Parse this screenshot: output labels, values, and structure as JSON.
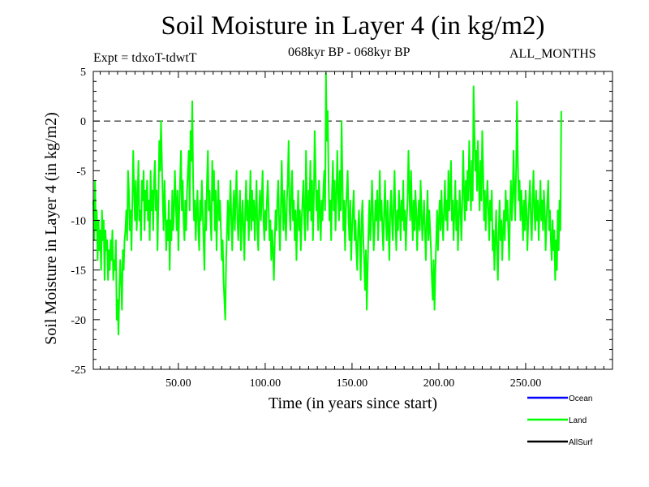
{
  "header": {
    "title": "Soil Moisture in Layer 4 (in kg/m2)",
    "expt": "Expt = tdxoT-tdwtT",
    "period": "068kyr BP - 068kyr BP",
    "months": "ALL_MONTHS"
  },
  "chart_data": {
    "type": "line",
    "title": "Soil Moisture in Layer 4 (in kg/m2)",
    "xlabel": "Time (in years since start)",
    "ylabel": "Soil Moisture in Layer 4 (in kg/m2)",
    "xlim": [
      1,
      300
    ],
    "ylim": [
      -25,
      5
    ],
    "x_ticks": [
      50,
      100,
      150,
      200,
      250
    ],
    "x_tick_labels": [
      "50.00",
      "100.00",
      "150.00",
      "200.00",
      "250.00"
    ],
    "y_ticks": [
      5,
      0,
      -5,
      -10,
      -15,
      -20,
      -25
    ],
    "y_tick_labels": [
      "5",
      "0",
      "-5",
      "-10",
      "-15",
      "-20",
      "-25"
    ],
    "reference_line": {
      "y": 0,
      "style": "dashed",
      "color": "#000000"
    },
    "legend_position": "bottom-right",
    "series": [
      {
        "name": "Ocean",
        "color": "#0000ff",
        "x": [],
        "y": []
      },
      {
        "name": "Land",
        "color": "#00ff00",
        "x_step": 0.5,
        "x_start": 1,
        "y": [
          -8,
          -12,
          -6,
          -11,
          -9,
          -14,
          -10,
          -13,
          -11,
          -15,
          -9,
          -12,
          -10,
          -16,
          -11,
          -13,
          -12,
          -16,
          -13,
          -15,
          -12,
          -14,
          -11,
          -16,
          -14,
          -15,
          -12,
          -20,
          -18,
          -21.5,
          -17,
          -14,
          -16,
          -19,
          -13,
          -15,
          -12,
          -11,
          -9,
          -12,
          -5,
          -7,
          -11,
          -9,
          -13,
          -8,
          -3,
          -7,
          -10,
          -6,
          -11,
          -8,
          -4,
          -10,
          -9,
          -12,
          -6,
          -8,
          -5,
          -11,
          -7,
          -9,
          -6,
          -10,
          -8,
          -12,
          -5,
          -9,
          -7,
          -11,
          -6,
          -4,
          -9,
          -7,
          -13,
          -8,
          -2,
          -5,
          0,
          -4,
          -8,
          -11,
          -6,
          -9,
          -13,
          -10,
          -12,
          -8,
          -15,
          -10,
          -12,
          -7,
          -11,
          -9,
          -5,
          -8,
          -11,
          -7,
          -13,
          -9,
          -6,
          -3,
          -9,
          -6,
          -10,
          -12,
          -8,
          -11,
          -7,
          -5,
          -3,
          -9,
          -1,
          -4,
          2,
          -6,
          -10,
          -8,
          -12,
          -9,
          -7,
          -11,
          -13,
          -8,
          -10,
          -6,
          -9,
          -12,
          -15,
          -8,
          -11,
          -6,
          -3,
          -9,
          -7,
          -10,
          -12,
          -4,
          -8,
          -5,
          -11,
          -7,
          -13,
          -9,
          -6,
          -10,
          -8,
          -11,
          -14,
          -12,
          -16,
          -18,
          -20,
          -14,
          -11,
          -8,
          -12,
          -9,
          -6,
          -10,
          -13,
          -9,
          -7,
          -11,
          -8,
          -5,
          -10,
          -12,
          -9,
          -7,
          -13,
          -10,
          -8,
          -11,
          -14,
          -9,
          -6,
          -10,
          -8,
          -12,
          -9,
          -5,
          -11,
          -7,
          -10,
          -8,
          -12,
          -9,
          -6,
          -11,
          -13,
          -9,
          -7,
          -10,
          -8,
          -5,
          -10,
          -12,
          -9,
          -11,
          -8,
          -6,
          -9,
          -12,
          -10,
          -14,
          -11,
          -13,
          -16,
          -12,
          -9,
          -11,
          -8,
          -6,
          -10,
          -13,
          -9,
          -4,
          -8,
          -11,
          -7,
          -10,
          -12,
          -8,
          -6,
          -2,
          -9,
          -11,
          -7,
          -5,
          -10,
          -8,
          -12,
          -9,
          -14,
          -10,
          -7,
          -11,
          -9,
          -13,
          -10,
          -8,
          -6,
          -10,
          -12,
          -3,
          -8,
          -11,
          -7,
          -9,
          -4,
          -10,
          -6,
          -12,
          -8,
          -1,
          -5,
          -9,
          -7,
          -11,
          -6,
          -9,
          -12,
          -8,
          -10,
          -7,
          -5,
          -9,
          4.8,
          -2,
          1,
          -6,
          -10,
          -8,
          -12,
          -7,
          -4,
          -9,
          -6,
          -11,
          -8,
          -3,
          -7,
          -10,
          -5,
          -9,
          0,
          -6,
          -11,
          -8,
          -13,
          -9,
          -7,
          -5,
          -10,
          -12,
          -8,
          -14,
          -11,
          -9,
          -7,
          -12,
          -10,
          -13,
          -15,
          -11,
          -9,
          -12,
          -16,
          -10,
          -8,
          -12,
          -14,
          -17,
          -13,
          -19,
          -15,
          -11,
          -8,
          -12,
          -10,
          -6,
          -9,
          -13,
          -11,
          -8,
          -10,
          -7,
          -12,
          -9,
          -5,
          -10,
          -8,
          -11,
          -13,
          -9,
          -6,
          -10,
          -12,
          -8,
          -11,
          -14,
          -9,
          -7,
          -10,
          -12,
          -8,
          -5,
          -10,
          -13,
          -9,
          -11,
          -7,
          -9,
          -12,
          -8,
          -10,
          -6,
          -11,
          -9,
          -13,
          -10,
          -8,
          -3,
          -7,
          -10,
          -5,
          -9,
          -12,
          -8,
          -11,
          -7,
          -9,
          -13,
          -10,
          -8,
          -11,
          -6,
          -9,
          -12,
          -10,
          -8,
          -11,
          -14,
          -10,
          -7,
          -12,
          -9,
          -11,
          -13,
          -16,
          -18,
          -14,
          -19,
          -15,
          -12,
          -9,
          -13,
          -10,
          -8,
          -11,
          -7,
          -10,
          -12,
          -9,
          -6,
          -10,
          -8,
          -11,
          -5,
          -9,
          -7,
          -4,
          -10,
          -8,
          -12,
          -9,
          -6,
          -11,
          -8,
          -13,
          -10,
          -7,
          -9,
          -12,
          -8,
          -3,
          -7,
          -10,
          -6,
          -9,
          -5,
          -8,
          -2,
          -6,
          -9,
          -4,
          -8,
          3.5,
          -1,
          -5,
          -3,
          -7,
          -2,
          -6,
          -9,
          -4,
          -8,
          -1,
          -5,
          -10,
          -7,
          -11,
          -8,
          -6,
          -9,
          -12,
          -8,
          -10,
          -7,
          -13,
          -11,
          -15,
          -12,
          -9,
          -13,
          -16,
          -11,
          -8,
          -12,
          -10,
          -14,
          -11,
          -9,
          -12,
          -7,
          -10,
          -8,
          -11,
          -14,
          -9,
          -6,
          -10,
          -8,
          -3,
          -7,
          -10,
          -5,
          2,
          -4,
          -8,
          -6,
          -10,
          -7,
          -9,
          -12,
          -8,
          -11,
          -7,
          -9,
          -13,
          -10,
          -8,
          -6,
          -10,
          -12,
          -8,
          -5,
          -9,
          -11,
          -7,
          -10,
          -8,
          -12,
          -9,
          -6,
          -10,
          -8,
          -11,
          -7,
          -9,
          -13,
          -10,
          -8,
          -6,
          -11,
          -9,
          -12,
          -14,
          -10,
          -13,
          -11,
          -16,
          -12,
          -15,
          -9,
          -13,
          -8,
          -11,
          1
        ]
      },
      {
        "name": "AllSurf",
        "color": "#000000",
        "x": [],
        "y": []
      }
    ]
  },
  "legend": {
    "items": [
      {
        "label": "Ocean",
        "color": "#0000ff"
      },
      {
        "label": "Land",
        "color": "#00ff00"
      },
      {
        "label": "AllSurf",
        "color": "#000000"
      }
    ]
  }
}
